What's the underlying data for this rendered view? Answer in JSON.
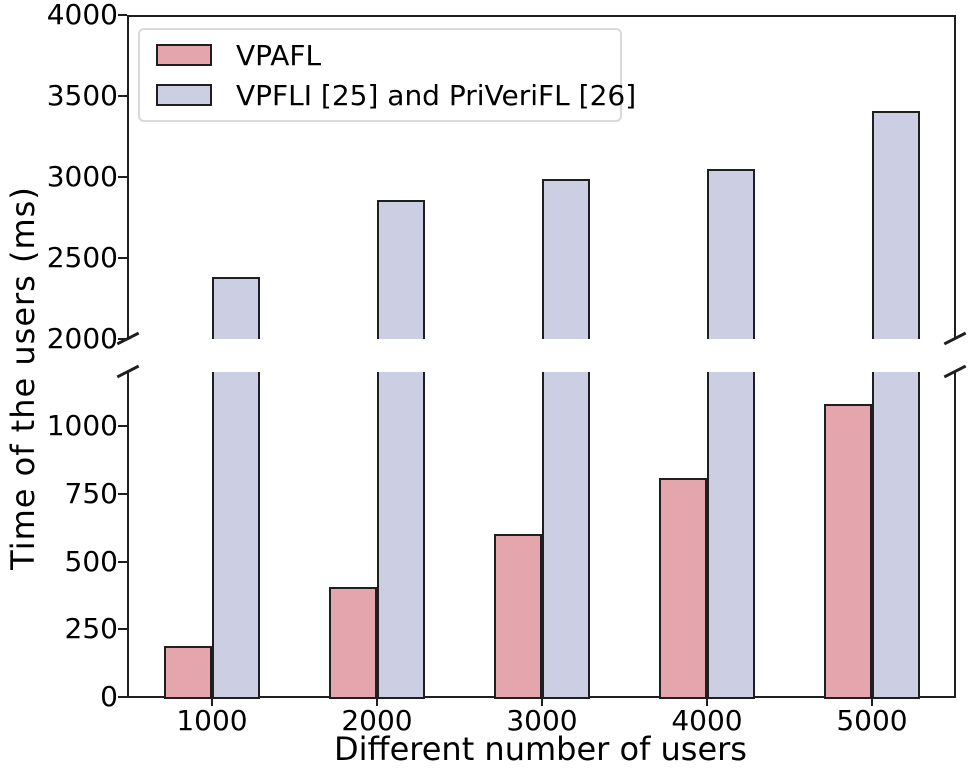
{
  "figure": {
    "background": "#ffffff",
    "spine_color": "#1f1f1f",
    "text_color": "#000000"
  },
  "chart_data": {
    "type": "bar",
    "title": "",
    "xlabel": "Different number of users",
    "ylabel": "Time of the users (ms)",
    "categories": [
      "1000",
      "2000",
      "3000",
      "4000",
      "5000"
    ],
    "series": [
      {
        "name": "VPAFL",
        "color": "#e5a5ac",
        "edge_color": "#1f1f1f",
        "values": [
          190,
          405,
          600,
          810,
          1080
        ]
      },
      {
        "name": "VPFLI [25] and PriVeriFL [26]",
        "color": "#cccfe4",
        "edge_color": "#1f1f1f",
        "values": [
          2380,
          2855,
          2985,
          3050,
          3405
        ]
      }
    ],
    "broken_axis": true,
    "panels": [
      {
        "position": "top",
        "ylim": [
          2000,
          4000
        ],
        "ticks": [
          2000,
          2500,
          3000,
          3500,
          4000
        ]
      },
      {
        "position": "bottom",
        "ylim": [
          0,
          1200
        ],
        "ticks": [
          0,
          250,
          500,
          750,
          1000
        ]
      }
    ],
    "grid": false,
    "legend_position": "upper-left"
  }
}
